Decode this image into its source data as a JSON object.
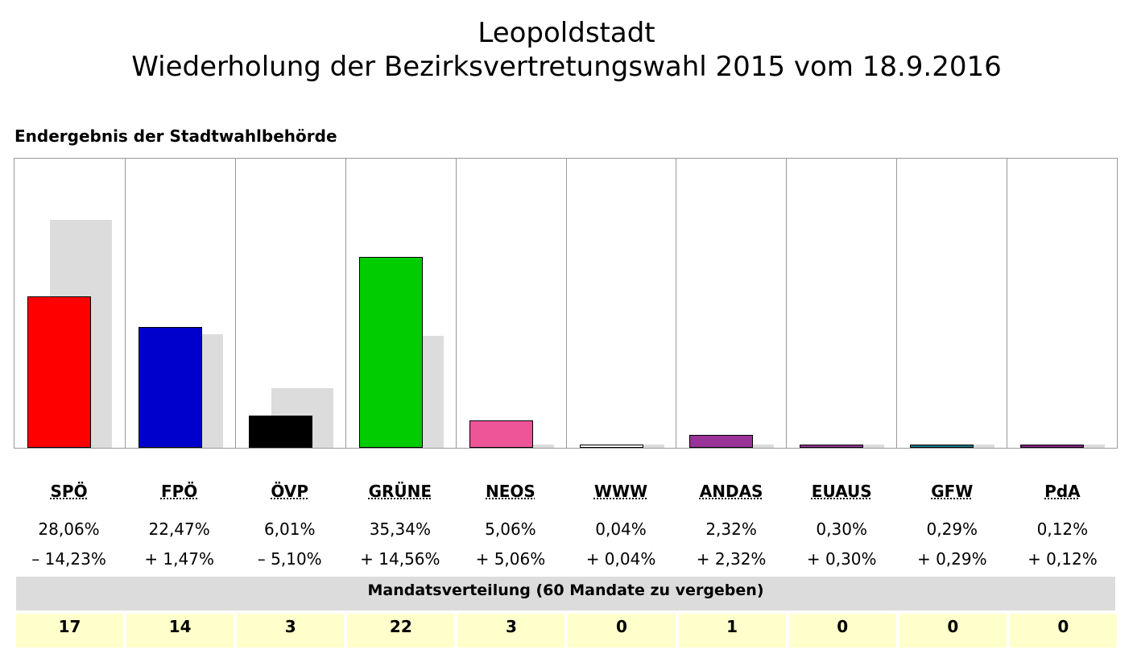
{
  "header": {
    "title": "Leopoldstadt",
    "subtitle": "Wiederholung der Bezirksvertretungswahl 2015 vom 18.9.2016"
  },
  "section_title": "Endergebnis der Stadtwahlbehörde",
  "chart_data": {
    "type": "bar",
    "categories": [
      "SPÖ",
      "FPÖ",
      "ÖVP",
      "GRÜNE",
      "NEOS",
      "WWW",
      "ANDAS",
      "EUAUS",
      "GFW",
      "PdA"
    ],
    "series": [
      {
        "values": [
          28.06,
          22.47,
          6.01,
          35.34,
          5.06,
          0.04,
          2.32,
          0.3,
          0.29,
          0.12
        ],
        "colors": [
          "#ff0000",
          "#0000cc",
          "#000000",
          "#00cc00",
          "#ee5599",
          "#ffffff",
          "#993399",
          "#993399",
          "#1a7a8a",
          "#882288"
        ]
      },
      {
        "values": [
          42.29,
          21.0,
          11.11,
          20.78,
          0,
          0,
          0,
          0,
          0,
          0
        ],
        "color": "#dcdcdc"
      }
    ],
    "ylim": [
      0,
      53.6
    ],
    "pct_labels": [
      "28,06%",
      "22,47%",
      "6,01%",
      "35,34%",
      "5,06%",
      "0,04%",
      "2,32%",
      "0,30%",
      "0,29%",
      "0,12%"
    ],
    "diff_labels": [
      "– 14,23%",
      "+ 1,47%",
      "– 5,10%",
      "+ 14,56%",
      "+ 5,06%",
      "+ 0,04%",
      "+ 2,32%",
      "+ 0,30%",
      "+ 0,29%",
      "+ 0,12%"
    ]
  },
  "mandates": {
    "title": "Mandatsverteilung (60 Mandate zu vergeben)",
    "values": [
      "17",
      "14",
      "3",
      "22",
      "3",
      "0",
      "1",
      "0",
      "0",
      "0"
    ]
  }
}
